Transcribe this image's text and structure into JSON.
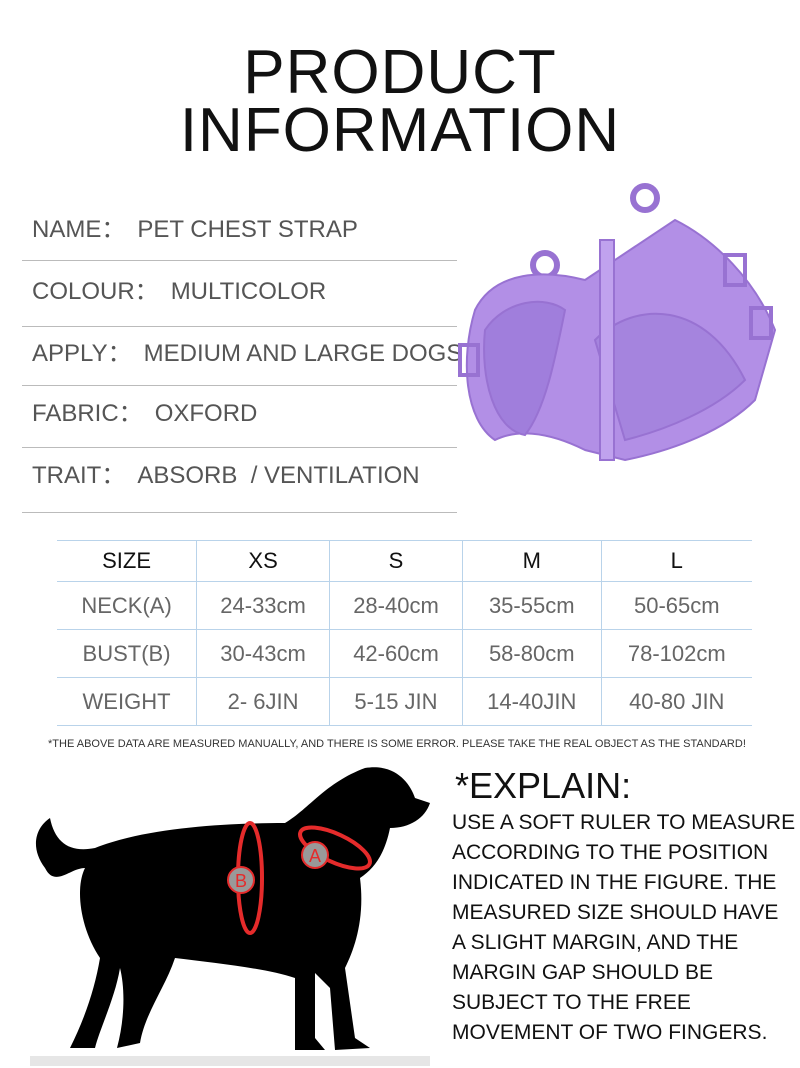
{
  "title": {
    "line1": "PRODUCT",
    "line2": "INFORMATION"
  },
  "info": [
    {
      "label": "NAME：",
      "value": "PET CHEST STRAP"
    },
    {
      "label": "COLOUR：",
      "value": "MULTICOLOR"
    },
    {
      "label": "APPLY：",
      "value": "MEDIUM AND LARGE DOGS"
    },
    {
      "label": "FABRIC：",
      "value": "OXFORD"
    },
    {
      "label": "TRAIT：",
      "value": "ABSORB  / VENTILATION"
    }
  ],
  "product_color": "#b28fe6",
  "size_table": {
    "headers": [
      "SIZE",
      "XS",
      "S",
      "M",
      "L"
    ],
    "rows": [
      [
        "NECK(A)",
        "24-33cm",
        "28-40cm",
        "35-55cm",
        "50-65cm"
      ],
      [
        "BUST(B)",
        "30-43cm",
        "42-60cm",
        "58-80cm",
        "78-102cm"
      ],
      [
        "WEIGHT",
        "2- 6JIN",
        "5-15 JIN",
        "14-40JIN",
        "40-80 JIN"
      ]
    ]
  },
  "note": "*THE ABOVE DATA ARE MEASURED MANUALLY, AND THERE IS SOME ERROR. PLEASE TAKE THE REAL OBJECT AS THE STANDARD!",
  "diagram": {
    "marker_a": "A",
    "marker_b": "B"
  },
  "explain": {
    "title": "*EXPLAIN:",
    "lines": [
      "USE A SOFT RULER TO MEASURE",
      "ACCORDING TO THE POSITION",
      "INDICATED IN THE FIGURE. THE",
      "MEASURED SIZE SHOULD HAVE",
      "A SLIGHT MARGIN, AND THE",
      "MARGIN GAP SHOULD BE",
      "SUBJECT TO THE FREE",
      "MOVEMENT OF TWO FINGERS."
    ]
  }
}
